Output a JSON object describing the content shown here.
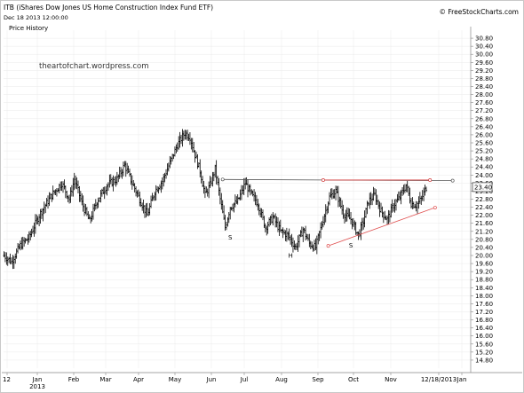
{
  "header": {
    "title": "ITB (iShares Dow Jones US Home Construction Index Fund ETF)",
    "date": "Dec 18 2013 12:00:00",
    "source": "© FreeStockCharts.com"
  },
  "pane_label": "Price History",
  "watermark": "theartofchart.wordpress.com",
  "colors": {
    "bars": "#000000",
    "resistance": "#555555",
    "channel_top": "#d23a3a",
    "channel_bottom": "#e05050",
    "grid": "#eaeaea",
    "axis": "#888888"
  },
  "chart_data": {
    "type": "ohlc",
    "ylim": [
      14.4,
      31.2
    ],
    "y_ticks": [
      "30.80",
      "30.40",
      "30.00",
      "29.60",
      "29.20",
      "28.80",
      "28.40",
      "28.00",
      "27.60",
      "27.20",
      "26.80",
      "26.40",
      "26.00",
      "25.60",
      "25.20",
      "24.80",
      "24.40",
      "24.00",
      "23.60",
      "23.20",
      "22.80",
      "22.40",
      "22.00",
      "21.60",
      "21.20",
      "20.80",
      "20.40",
      "20.00",
      "19.60",
      "19.20",
      "18.80",
      "18.40",
      "18.00",
      "17.60",
      "17.20",
      "16.80",
      "16.40",
      "16.00",
      "15.60",
      "15.20",
      "14.80"
    ],
    "x_ticks": [
      "12",
      "Jan",
      "Feb",
      "Mar",
      "Apr",
      "May",
      "Jun",
      "Jul",
      "Aug",
      "Sep",
      "Oct",
      "Nov",
      "12/18/2013",
      "Jan"
    ],
    "x_sublabel": "2013",
    "last_price": "23.40",
    "anchors": [
      {
        "day": 0,
        "price": 20.0
      },
      {
        "day": 6,
        "price": 19.7
      },
      {
        "day": 13,
        "price": 20.5
      },
      {
        "day": 20,
        "price": 20.9
      },
      {
        "day": 28,
        "price": 22.0
      },
      {
        "day": 38,
        "price": 23.0
      },
      {
        "day": 46,
        "price": 23.6
      },
      {
        "day": 52,
        "price": 22.8
      },
      {
        "day": 56,
        "price": 23.8
      },
      {
        "day": 62,
        "price": 22.6
      },
      {
        "day": 68,
        "price": 21.7
      },
      {
        "day": 74,
        "price": 22.7
      },
      {
        "day": 82,
        "price": 23.5
      },
      {
        "day": 90,
        "price": 23.8
      },
      {
        "day": 96,
        "price": 24.5
      },
      {
        "day": 102,
        "price": 23.6
      },
      {
        "day": 108,
        "price": 22.8
      },
      {
        "day": 114,
        "price": 22.0
      },
      {
        "day": 120,
        "price": 23.2
      },
      {
        "day": 126,
        "price": 23.7
      },
      {
        "day": 132,
        "price": 24.6
      },
      {
        "day": 138,
        "price": 25.5
      },
      {
        "day": 144,
        "price": 26.1
      },
      {
        "day": 148,
        "price": 25.9
      },
      {
        "day": 152,
        "price": 25.0
      },
      {
        "day": 156,
        "price": 24.2
      },
      {
        "day": 160,
        "price": 23.0
      },
      {
        "day": 164,
        "price": 23.5
      },
      {
        "day": 168,
        "price": 24.3
      },
      {
        "day": 172,
        "price": 22.8
      },
      {
        "day": 176,
        "price": 21.4
      },
      {
        "day": 180,
        "price": 22.4
      },
      {
        "day": 186,
        "price": 22.7
      },
      {
        "day": 192,
        "price": 23.6
      },
      {
        "day": 197,
        "price": 23.0
      },
      {
        "day": 202,
        "price": 22.6
      },
      {
        "day": 208,
        "price": 21.4
      },
      {
        "day": 214,
        "price": 21.9
      },
      {
        "day": 220,
        "price": 21.2
      },
      {
        "day": 226,
        "price": 21.0
      },
      {
        "day": 232,
        "price": 20.4
      },
      {
        "day": 238,
        "price": 21.3
      },
      {
        "day": 243,
        "price": 20.6
      },
      {
        "day": 248,
        "price": 20.4
      },
      {
        "day": 254,
        "price": 21.8
      },
      {
        "day": 259,
        "price": 22.9
      },
      {
        "day": 264,
        "price": 23.2
      },
      {
        "day": 270,
        "price": 22.1
      },
      {
        "day": 276,
        "price": 21.8
      },
      {
        "day": 282,
        "price": 21.0
      },
      {
        "day": 286,
        "price": 21.7
      },
      {
        "day": 290,
        "price": 22.7
      },
      {
        "day": 295,
        "price": 23.0
      },
      {
        "day": 300,
        "price": 22.2
      },
      {
        "day": 305,
        "price": 21.8
      },
      {
        "day": 310,
        "price": 22.5
      },
      {
        "day": 315,
        "price": 22.9
      },
      {
        "day": 320,
        "price": 23.5
      },
      {
        "day": 324,
        "price": 22.6
      },
      {
        "day": 328,
        "price": 22.5
      },
      {
        "day": 332,
        "price": 22.8
      },
      {
        "day": 336,
        "price": 23.4
      }
    ],
    "trendlines": [
      {
        "name": "resistance",
        "from": {
          "day": 174,
          "price": 23.78
        },
        "to": {
          "day": 357,
          "price": 23.72
        }
      },
      {
        "name": "channel-top",
        "from": {
          "day": 254,
          "price": 23.75
        },
        "to": {
          "day": 339,
          "price": 23.75
        }
      },
      {
        "name": "channel-bottom",
        "from": {
          "day": 258,
          "price": 20.48
        },
        "to": {
          "day": 343,
          "price": 22.38
        }
      }
    ],
    "annotations": [
      {
        "text": "S",
        "day": 180,
        "price": 20.8
      },
      {
        "text": "H",
        "day": 228,
        "price": 19.9
      },
      {
        "text": "S",
        "day": 276,
        "price": 20.4
      }
    ]
  }
}
